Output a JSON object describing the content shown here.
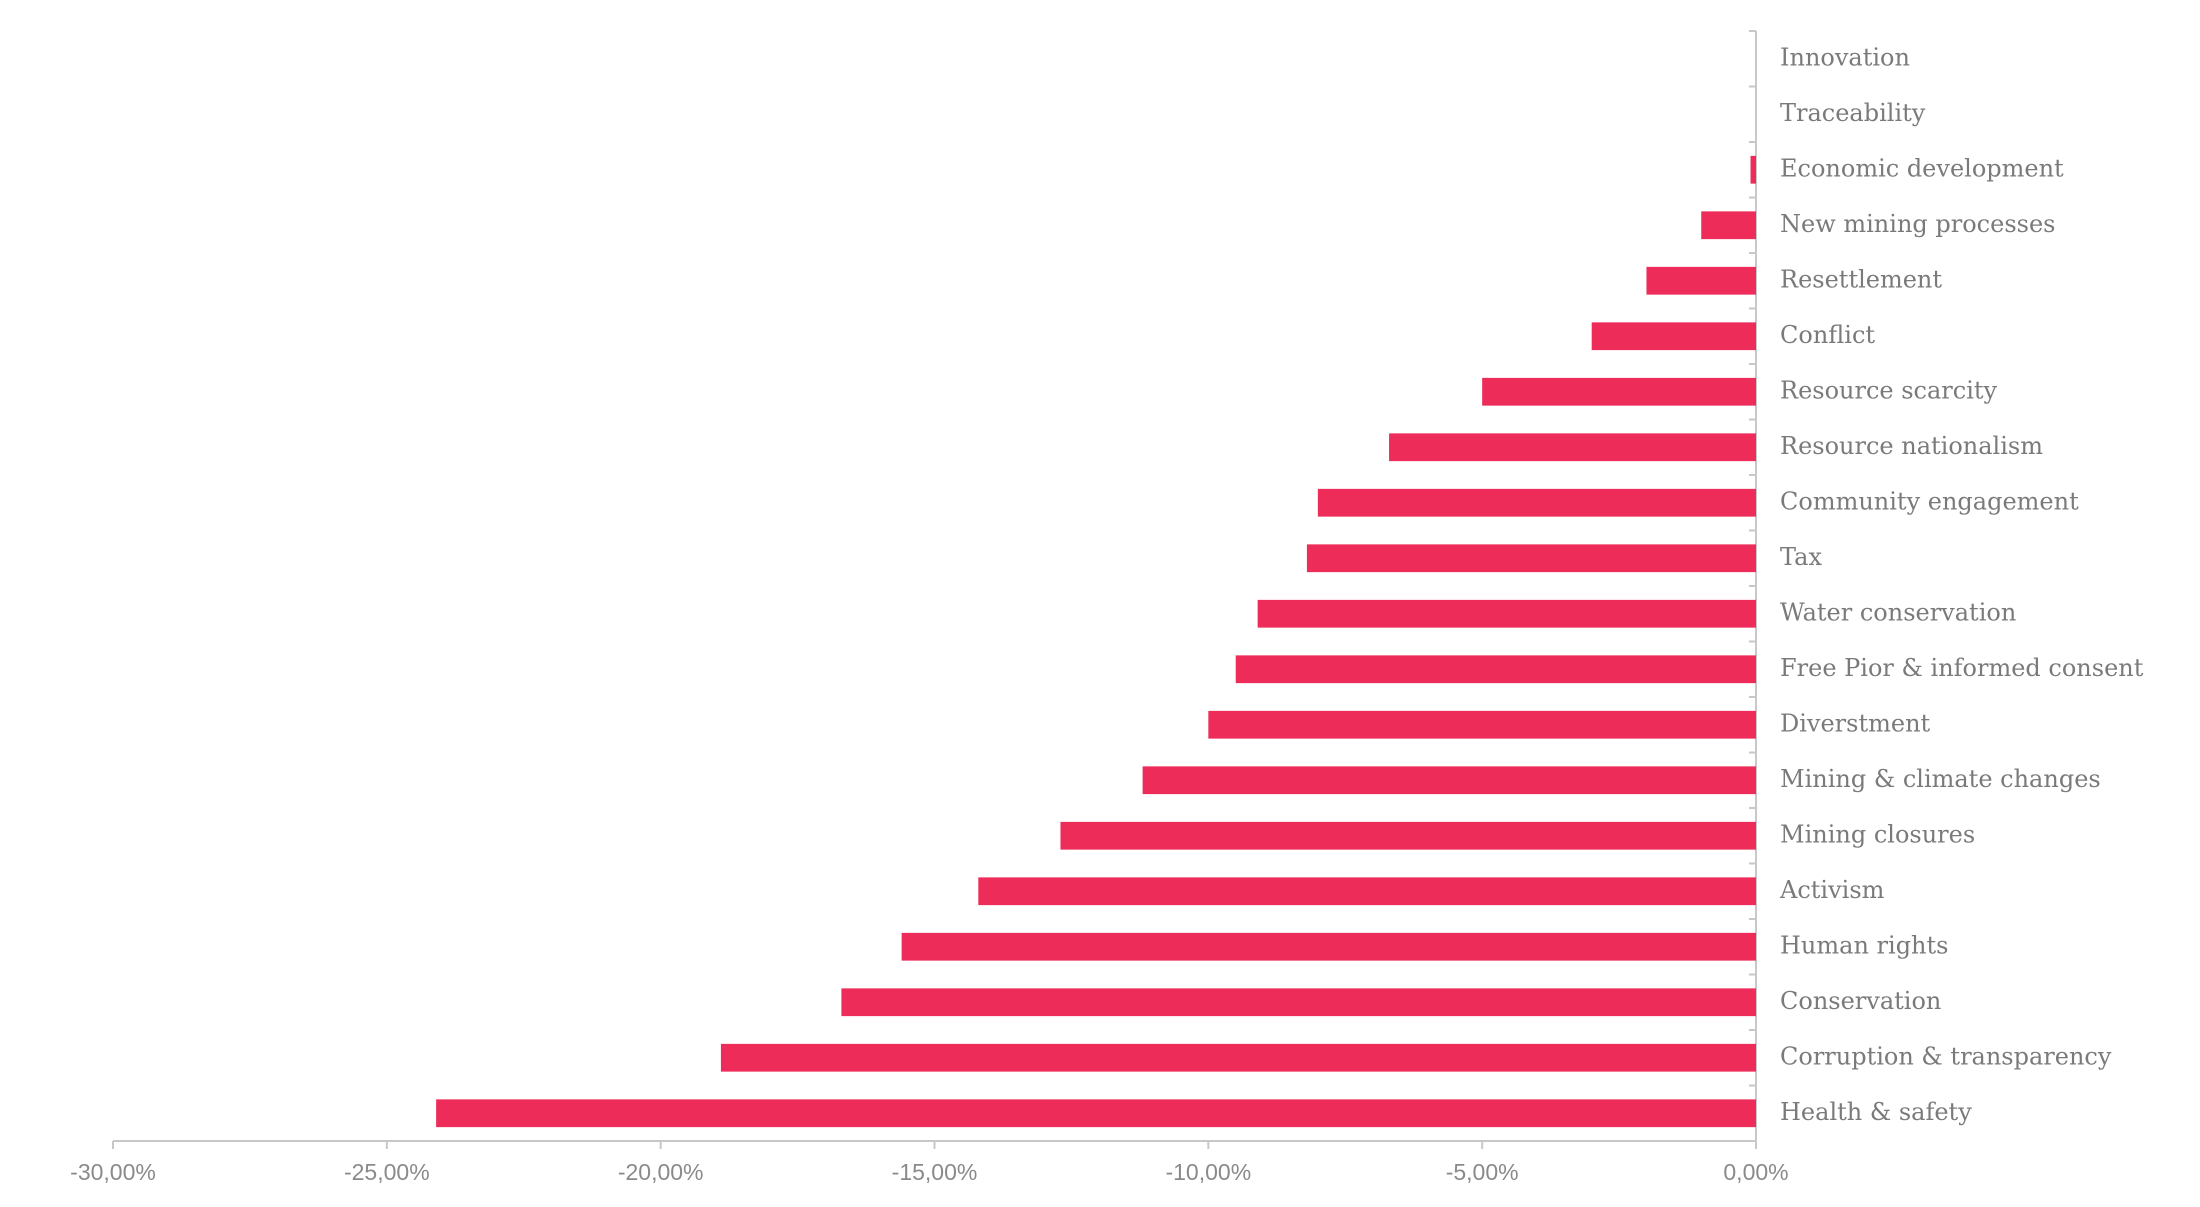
{
  "chart_data": {
    "type": "hbar",
    "categories": [
      "Innovation",
      "Traceability",
      "Economic development",
      "New mining processes",
      "Resettlement",
      "Conflict",
      "Resource scarcity",
      "Resource nationalism",
      "Community engagement",
      "Tax",
      "Water conservation",
      "Free Pior & informed consent",
      "Diverstment",
      "Mining & climate changes",
      "Mining closures",
      "Activism",
      "Human rights",
      "Conservation",
      "Corruption & transparency",
      "Health & safety"
    ],
    "values": [
      0,
      0,
      -0.1,
      -1.0,
      -2.0,
      -3.0,
      -5.0,
      -6.7,
      -8.0,
      -8.2,
      -9.1,
      -9.5,
      -10.0,
      -11.2,
      -12.7,
      -14.2,
      -15.6,
      -16.7,
      -18.9,
      -24.1
    ],
    "color": "#ee2c59",
    "xlim": [
      -30,
      0
    ],
    "xticks": [
      {
        "value": -30,
        "label": "-30,00%"
      },
      {
        "value": -25,
        "label": "-25,00%"
      },
      {
        "value": -20,
        "label": "-20,00%"
      },
      {
        "value": -15,
        "label": "-15,00%"
      },
      {
        "value": -10,
        "label": "-10,00%"
      },
      {
        "value": -5,
        "label": "-5,00%"
      },
      {
        "value": 0,
        "label": "0,00%"
      }
    ],
    "grid": false
  }
}
